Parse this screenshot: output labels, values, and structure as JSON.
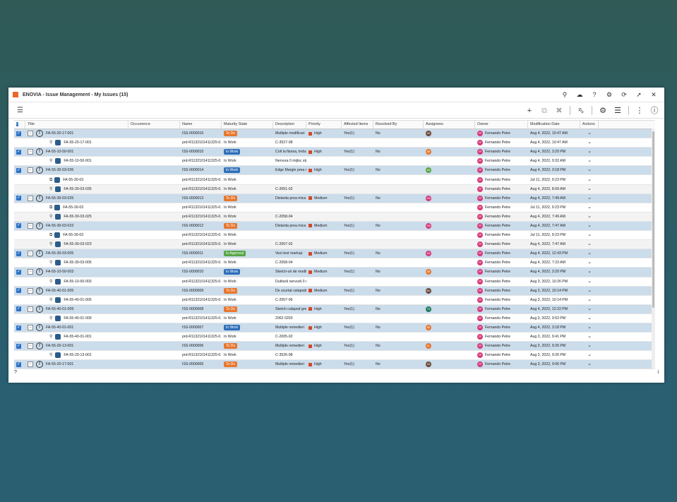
{
  "window": {
    "title": "ENOVIA - Issue Management - My Issues (15)"
  },
  "columns": [
    "Title",
    "Occurrence",
    "Name",
    "Maturity State",
    "Description",
    "Priority",
    "Affected Items",
    "Resolved By",
    "Assignees",
    "Owner",
    "Modification Date",
    "Actions"
  ],
  "footer": {
    "help": "?",
    "info": "i"
  },
  "rows": [
    {
      "t": "issue",
      "title": "FA-55-20-17-001",
      "name": "ISS-0000016",
      "state": "To Do",
      "desc": "Multiple modificari",
      "pri": "High",
      "aff": "Yes(1)",
      "res": "No",
      "asg": "SS",
      "asgc": "#6b4a3a",
      "owner": "Fernando Petre",
      "date": "Aug 4, 2022, 10:47 AM"
    },
    {
      "t": "child",
      "title": "FA-55-20-17-001",
      "name": "prd-R1132101411325-0...",
      "state": "In Work",
      "desc": "C-3527-08",
      "owner": "Fernando Petre",
      "date": "Aug 4, 2022, 10:47 AM",
      "icon": "pin"
    },
    {
      "t": "issue",
      "title": "FA-55-10-50-001",
      "name": "ISS-0000015",
      "state": "In Work",
      "desc": "Colt la flansa, trebuie inl...",
      "pri": "High",
      "aff": "Yes(1)",
      "res": "No",
      "asg": "BR",
      "asgc": "#e8762d",
      "owner": "Fernando Petre",
      "date": "Aug 4, 2022, 3:20 PM"
    },
    {
      "t": "child",
      "title": "FA-55-10-50-001",
      "name": "prd-R1132101411325-0...",
      "state": "In Work",
      "desc": "Nervura 0 mijloc stg.",
      "owner": "Fernando Petre",
      "date": "Aug 4, 2022, 9:32 AM",
      "icon": "pin"
    },
    {
      "t": "issue",
      "title": "FA-55-30-03-035",
      "name": "ISS-0000014",
      "state": "In Work",
      "desc": "Edge Margin prea mic",
      "pri": "High",
      "aff": "Yes(1)",
      "res": "No",
      "asg": "AN",
      "asgc": "#57a645",
      "owner": "Fernando Petre",
      "date": "Aug 4, 2022, 3:18 PM"
    },
    {
      "t": "child",
      "title": "FA-55-30-03",
      "name": "prd-R1132101411325-0...",
      "state": "In Work",
      "desc": "",
      "owner": "Fernando Petre",
      "date": "Jul 11, 2022, 9:23 PM",
      "icon": "docs"
    },
    {
      "t": "child",
      "title": "FA-55-30-03-035",
      "name": "prd-R1132101411325-0...",
      "state": "In Work",
      "desc": "C-2051-02",
      "owner": "Fernando Petre",
      "date": "Aug 4, 2022, 8:09 AM",
      "icon": "pin"
    },
    {
      "t": "issue",
      "title": "FA-55-30-03-025",
      "name": "ISS-0000013",
      "state": "To Do",
      "desc": "Distanta prea mica intre...",
      "pri": "Medium",
      "aff": "Yes(1)",
      "res": "No",
      "asg": "SM",
      "asgc": "#d63a7a",
      "owner": "Fernando Petre",
      "date": "Aug 4, 2022, 7:49 AM"
    },
    {
      "t": "child",
      "title": "FA-55-30-03",
      "name": "prd-R1132101411325-0...",
      "state": "In Work",
      "desc": "",
      "owner": "Fernando Petre",
      "date": "Jul 11, 2022, 9:23 PM",
      "icon": "docs"
    },
    {
      "t": "child",
      "title": "FA-55-30-03-025",
      "name": "prd-R1132101411325-0...",
      "state": "In Work",
      "desc": "C-2058-04",
      "owner": "Fernando Petre",
      "date": "Aug 4, 2022, 7:49 AM",
      "icon": "pin"
    },
    {
      "t": "issue",
      "title": "FA-55-30-03-023",
      "name": "ISS-0000012",
      "state": "To Do",
      "desc": "Distanta prea mica intre...",
      "pri": "Medium",
      "aff": "Yes(1)",
      "res": "No",
      "asg": "SM",
      "asgc": "#d63a7a",
      "owner": "Fernando Petre",
      "date": "Aug 4, 2022, 7:47 AM"
    },
    {
      "t": "child",
      "title": "FA-55-30-03",
      "name": "prd-R1132101411325-0...",
      "state": "In Work",
      "desc": "",
      "owner": "Fernando Petre",
      "date": "Jul 11, 2022, 9:23 PM",
      "icon": "docs"
    },
    {
      "t": "child",
      "title": "FA-55-30-03-023",
      "name": "prd-R1132101411325-0...",
      "state": "In Work",
      "desc": "C-2057-02",
      "owner": "Fernando Petre",
      "date": "Aug 4, 2022, 7:47 AM",
      "icon": "pin"
    },
    {
      "t": "issue",
      "title": "FA-55-30-03-005",
      "name": "ISS-0000011",
      "state": "In Approval",
      "desc": "Vezi text markup",
      "pri": "Medium",
      "aff": "Yes(1)",
      "res": "No",
      "asg": "SS",
      "asgc": "#d63a7a",
      "owner": "Fernando Petre",
      "date": "Aug 4, 2022, 12:43 PM"
    },
    {
      "t": "child",
      "title": "FA-55-30-03-005",
      "name": "prd-R1132101411325-0...",
      "state": "In Work",
      "desc": "C-2058-04",
      "owner": "Fernando Petre",
      "date": "Aug 4, 2022, 7:23 AM",
      "icon": "pin"
    },
    {
      "t": "issue",
      "title": "FA-55-10-50-003",
      "name": "ISS-0000010",
      "state": "In Work",
      "desc": "Sketch-uri de modificat",
      "pri": "Medium",
      "aff": "Yes(1)",
      "res": "No",
      "asg": "BR",
      "asgc": "#e8762d",
      "owner": "Fernando Petre",
      "date": "Aug 4, 2022, 3:20 PM"
    },
    {
      "t": "child",
      "title": "FA-55-10-50-003",
      "name": "prd-R1132101411325-0...",
      "state": "In Work",
      "desc": "Dublură nervură 0 mijlo...",
      "owner": "Fernando Petre",
      "date": "Aug 3, 2022, 10:26 PM",
      "icon": "pin"
    },
    {
      "t": "issue",
      "title": "FA-55-40-01-005",
      "name": "ISS-0000009",
      "state": "To Do",
      "desc": "De scurtat calapodul",
      "pri": "Medium",
      "aff": "Yes(1)",
      "res": "No",
      "asg": "MV",
      "asgc": "#6b4a3a",
      "owner": "Fernando Petre",
      "date": "Aug 3, 2022, 10:14 PM"
    },
    {
      "t": "child",
      "title": "FA-55-40-01-005",
      "name": "prd-R1132101411325-0...",
      "state": "In Work",
      "desc": "C-2057-06",
      "owner": "Fernando Petre",
      "date": "Aug 3, 2022, 10:14 PM",
      "icon": "pin"
    },
    {
      "t": "issue",
      "title": "FA-55-40-01-009",
      "name": "ISS-0000008",
      "state": "To Do",
      "desc": "Sketch calapod gresit",
      "pri": "High",
      "aff": "Yes(1)",
      "res": "No",
      "asg": "TR",
      "asgc": "#1e7a5a",
      "owner": "Fernando Petre",
      "date": "Aug 4, 2022, 12:22 PM"
    },
    {
      "t": "child",
      "title": "FA-55-40-01-009",
      "name": "prd-R1132101411325-0...",
      "state": "In Work",
      "desc": "2062 0203",
      "owner": "Fernando Petre",
      "date": "Aug 3, 2022, 9:53 PM",
      "icon": "pin"
    },
    {
      "t": "issue",
      "title": "FA-55-40-01-001",
      "name": "ISS-0000007",
      "state": "In Work",
      "desc": "Multiple remedieri",
      "pri": "High",
      "aff": "Yes(1)",
      "res": "No",
      "asg": "BR",
      "asgc": "#e8762d",
      "owner": "Fernando Petre",
      "date": "Aug 4, 2022, 3:18 PM"
    },
    {
      "t": "child",
      "title": "FA-55-40-01-001",
      "name": "prd-R1132101411325-0...",
      "state": "In Work",
      "desc": "C-2005-02",
      "owner": "Fernando Petre",
      "date": "Aug 3, 2022, 9:41 PM",
      "icon": "pin"
    },
    {
      "t": "issue",
      "title": "FA-55-20-13-001",
      "name": "ISS-0000006",
      "state": "To Do",
      "desc": "Multiple remedieri",
      "pri": "High",
      "aff": "Yes(1)",
      "res": "No",
      "asg": "SL",
      "asgc": "#e8762d",
      "owner": "Fernando Petre",
      "date": "Aug 3, 2022, 9:26 PM"
    },
    {
      "t": "child",
      "title": "FA-55-20-13-001",
      "name": "prd-R1132101411325-0...",
      "state": "In Work",
      "desc": "C-3526-08",
      "owner": "Fernando Petre",
      "date": "Aug 3, 2022, 9:26 PM",
      "icon": "pin"
    },
    {
      "t": "issue",
      "title": "FA-55-20-17-001",
      "name": "ISS-0000005",
      "state": "To Do",
      "desc": "Multiple remedieri",
      "pri": "High",
      "aff": "Yes(1)",
      "res": "No",
      "asg": "SS",
      "asgc": "#6b4a3a",
      "owner": "Fernando Petre",
      "date": "Aug 3, 2022, 9:06 PM"
    }
  ]
}
